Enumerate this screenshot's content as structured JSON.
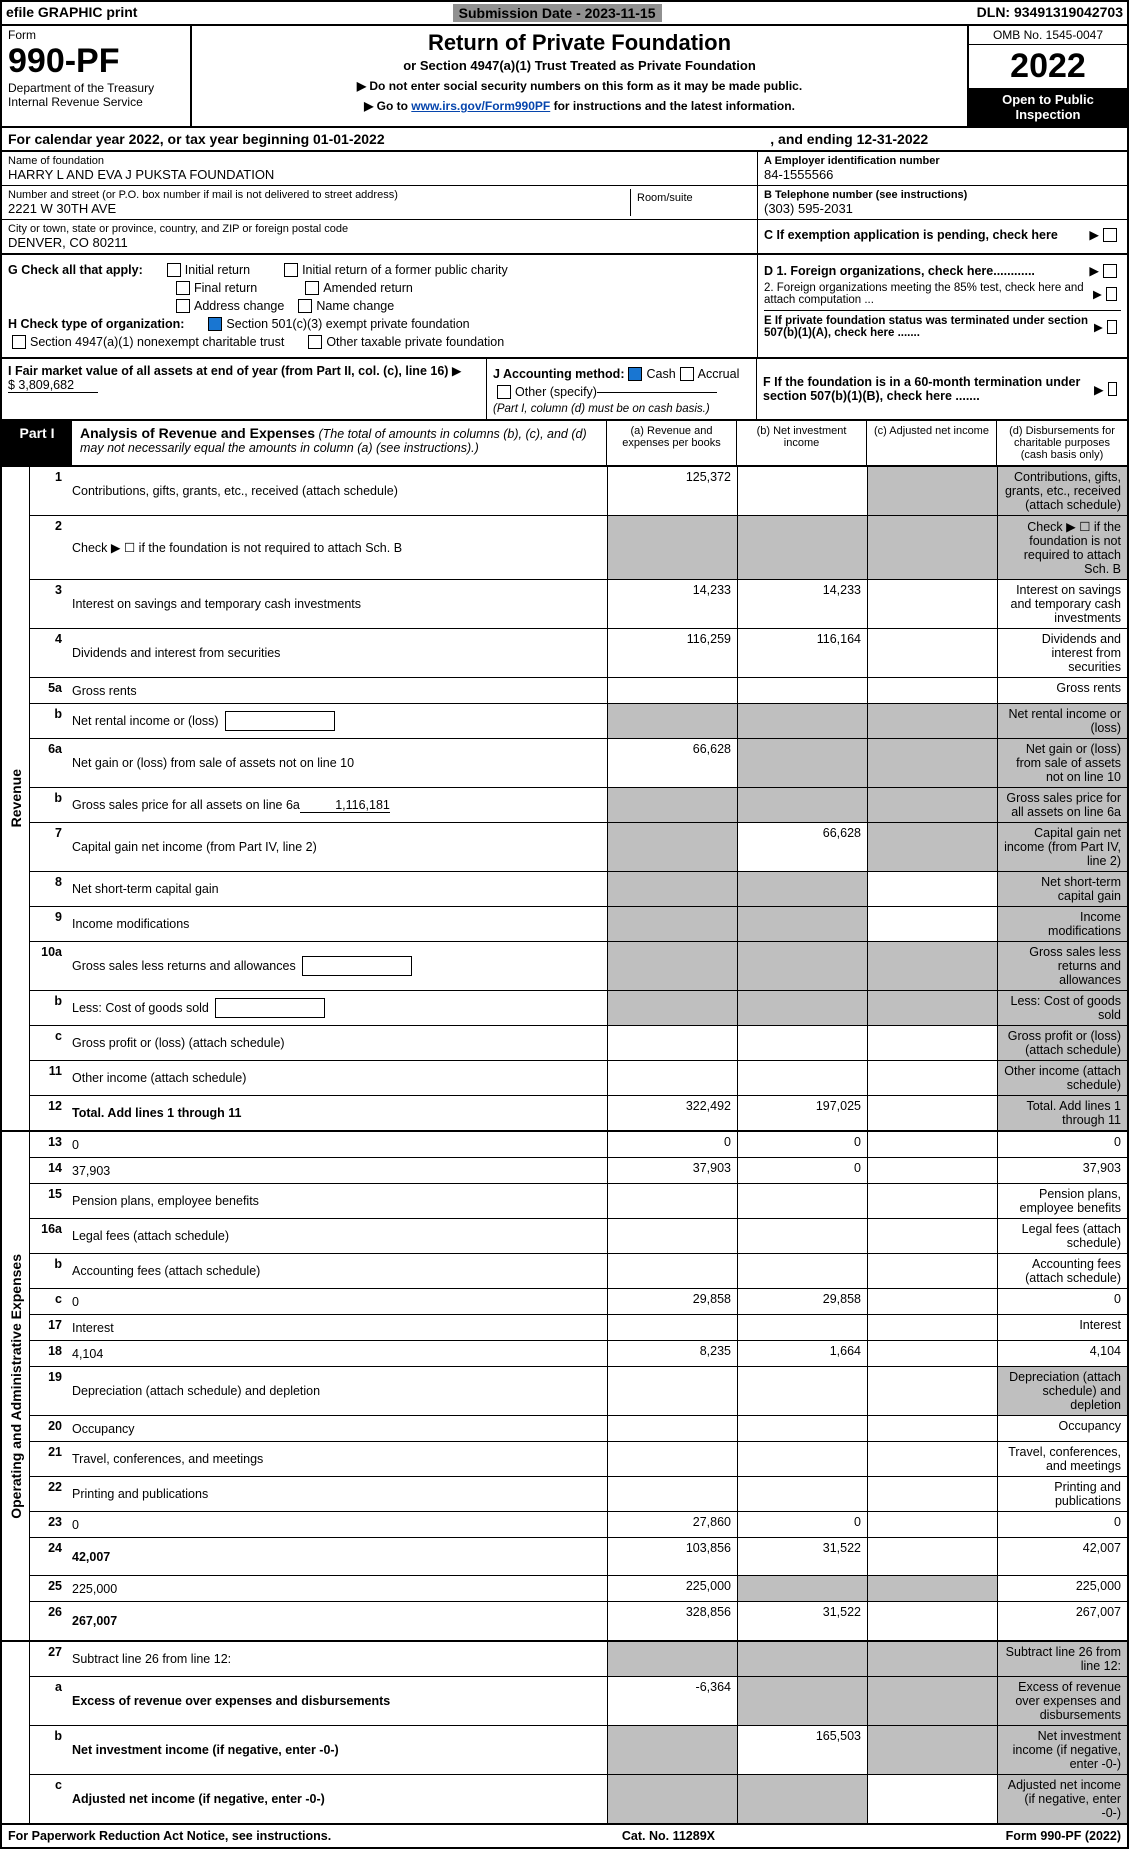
{
  "topbar": {
    "efile": "efile GRAPHIC print",
    "subdate_label": "Submission Date - 2023-11-15",
    "dln": "DLN: 93491319042703"
  },
  "header": {
    "form_word": "Form",
    "form_num": "990-PF",
    "dept": "Department of the Treasury",
    "irs": "Internal Revenue Service",
    "title": "Return of Private Foundation",
    "subtitle": "or Section 4947(a)(1) Trust Treated as Private Foundation",
    "instr1": "▶ Do not enter social security numbers on this form as it may be made public.",
    "instr2_pre": "▶ Go to ",
    "instr2_link": "www.irs.gov/Form990PF",
    "instr2_post": " for instructions and the latest information.",
    "omb": "OMB No. 1545-0047",
    "year": "2022",
    "inspect": "Open to Public Inspection"
  },
  "cal": {
    "text_a": "For calendar year 2022, or tax year beginning 01-01-2022",
    "text_b": ", and ending 12-31-2022"
  },
  "entity": {
    "name_lbl": "Name of foundation",
    "name": "HARRY L AND EVA J PUKSTA FOUNDATION",
    "addr_lbl": "Number and street (or P.O. box number if mail is not delivered to street address)",
    "addr": "2221 W 30TH AVE",
    "room_lbl": "Room/suite",
    "city_lbl": "City or town, state or province, country, and ZIP or foreign postal code",
    "city": "DENVER, CO  80211",
    "a_lbl": "A Employer identification number",
    "a_val": "84-1555566",
    "b_lbl": "B Telephone number (see instructions)",
    "b_val": "(303) 595-2031",
    "c_lbl": "C If exemption application is pending, check here"
  },
  "checks": {
    "g_lbl": "G Check all that apply:",
    "g_items": [
      "Initial return",
      "Final return",
      "Address change",
      "Initial return of a former public charity",
      "Amended return",
      "Name change"
    ],
    "h_lbl": "H Check type of organization:",
    "h_1": "Section 501(c)(3) exempt private foundation",
    "h_2": "Section 4947(a)(1) nonexempt charitable trust",
    "h_3": "Other taxable private foundation",
    "d1": "D 1. Foreign organizations, check here............",
    "d2": "2. Foreign organizations meeting the 85% test, check here and attach computation ...",
    "e": "E  If private foundation status was terminated under section 507(b)(1)(A), check here .......",
    "i_lbl": "I Fair market value of all assets at end of year (from Part II, col. (c), line 16)",
    "i_val": "$  3,809,682",
    "j_lbl": "J Accounting method:",
    "j_cash": "Cash",
    "j_accr": "Accrual",
    "j_other": "Other (specify)",
    "j_note": "(Part I, column (d) must be on cash basis.)",
    "f": "F  If the foundation is in a 60-month termination under section 507(b)(1)(B), check here ......."
  },
  "part": {
    "label": "Part I",
    "title": "Analysis of Revenue and Expenses",
    "title_note": " (The total of amounts in columns (b), (c), and (d) may not necessarily equal the amounts in column (a) (see instructions).)",
    "col_a": "(a)    Revenue and expenses per books",
    "col_b": "(b)    Net investment income",
    "col_c": "(c)    Adjusted net income",
    "col_d": "(d)   Disbursements for charitable purposes (cash basis only)"
  },
  "sides": {
    "rev": "Revenue",
    "exp": "Operating and Administrative Expenses"
  },
  "rows": {
    "r1": {
      "n": "1",
      "d": "Contributions, gifts, grants, etc., received (attach schedule)",
      "a": "125,372",
      "b": "",
      "c_grey": true,
      "d_grey": true
    },
    "r2": {
      "n": "2",
      "d": "Check ▶ ☐ if the foundation is not required to attach Sch. B",
      "all_grey": true
    },
    "r3": {
      "n": "3",
      "d": "Interest on savings and temporary cash investments",
      "a": "14,233",
      "b": "14,233"
    },
    "r4": {
      "n": "4",
      "d": "Dividends and interest from securities",
      "a": "116,259",
      "b": "116,164"
    },
    "r5a": {
      "n": "5a",
      "d": "Gross rents"
    },
    "r5b": {
      "n": "b",
      "d": "Net rental income or (loss)",
      "inline_box": true,
      "all_grey": true
    },
    "r6a": {
      "n": "6a",
      "d": "Net gain or (loss) from sale of assets not on line 10",
      "a": "66,628",
      "b_grey": true,
      "c_grey": true,
      "d_grey": true
    },
    "r6b": {
      "n": "b",
      "d": "Gross sales price for all assets on line 6a",
      "inline_val": "1,116,181",
      "all_grey": true
    },
    "r7": {
      "n": "7",
      "d": "Capital gain net income (from Part IV, line 2)",
      "a_grey": true,
      "b": "66,628",
      "c_grey": true,
      "d_grey": true
    },
    "r8": {
      "n": "8",
      "d": "Net short-term capital gain",
      "a_grey": true,
      "b_grey": true,
      "d_grey": true
    },
    "r9": {
      "n": "9",
      "d": "Income modifications",
      "a_grey": true,
      "b_grey": true,
      "d_grey": true
    },
    "r10a": {
      "n": "10a",
      "d": "Gross sales less returns and allowances",
      "inline_box": true,
      "all_grey": true
    },
    "r10b": {
      "n": "b",
      "d": "Less: Cost of goods sold",
      "inline_box": true,
      "all_grey": true
    },
    "r10c": {
      "n": "c",
      "d": "Gross profit or (loss) (attach schedule)",
      "d_grey": true
    },
    "r11": {
      "n": "11",
      "d": "Other income (attach schedule)",
      "d_grey": true
    },
    "r12": {
      "n": "12",
      "d": "Total. Add lines 1 through 11",
      "a": "322,492",
      "b": "197,025",
      "d_grey": true,
      "bold": true
    },
    "r13": {
      "n": "13",
      "d": "0",
      "a": "0",
      "b": "0"
    },
    "r14": {
      "n": "14",
      "d": "37,903",
      "a": "37,903",
      "b": "0"
    },
    "r15": {
      "n": "15",
      "d": "Pension plans, employee benefits"
    },
    "r16a": {
      "n": "16a",
      "d": "Legal fees (attach schedule)"
    },
    "r16b": {
      "n": "b",
      "d": "Accounting fees (attach schedule)"
    },
    "r16c": {
      "n": "c",
      "d": "0",
      "a": "29,858",
      "b": "29,858"
    },
    "r17": {
      "n": "17",
      "d": "Interest"
    },
    "r18": {
      "n": "18",
      "d": "4,104",
      "a": "8,235",
      "b": "1,664"
    },
    "r19": {
      "n": "19",
      "d": "Depreciation (attach schedule) and depletion",
      "d_grey": true
    },
    "r20": {
      "n": "20",
      "d": "Occupancy"
    },
    "r21": {
      "n": "21",
      "d": "Travel, conferences, and meetings"
    },
    "r22": {
      "n": "22",
      "d": "Printing and publications"
    },
    "r23": {
      "n": "23",
      "d": "0",
      "a": "27,860",
      "b": "0"
    },
    "r24": {
      "n": "24",
      "d": "42,007",
      "a": "103,856",
      "b": "31,522",
      "bold": true,
      "tall": true
    },
    "r25": {
      "n": "25",
      "d": "225,000",
      "a": "225,000",
      "b_grey": true,
      "c_grey": true
    },
    "r26": {
      "n": "26",
      "d": "267,007",
      "a": "328,856",
      "b": "31,522",
      "bold": true,
      "tall": true
    },
    "r27": {
      "n": "27",
      "d": "Subtract line 26 from line 12:",
      "all_grey": true,
      "bold": false
    },
    "r27a": {
      "n": "a",
      "d": "Excess of revenue over expenses and disbursements",
      "a": "-6,364",
      "b_grey": true,
      "c_grey": true,
      "d_grey": true,
      "bold": true
    },
    "r27b": {
      "n": "b",
      "d": "Net investment income (if negative, enter -0-)",
      "a_grey": true,
      "b": "165,503",
      "c_grey": true,
      "d_grey": true,
      "bold": true
    },
    "r27c": {
      "n": "c",
      "d": "Adjusted net income (if negative, enter -0-)",
      "a_grey": true,
      "b_grey": true,
      "d_grey": true,
      "bold": true
    }
  },
  "footer": {
    "left": "For Paperwork Reduction Act Notice, see instructions.",
    "mid": "Cat. No. 11289X",
    "right": "Form 990-PF (2022)"
  },
  "colors": {
    "grey": "#bfbfbf",
    "link": "#0645ad",
    "check_blue": "#1976d2"
  }
}
